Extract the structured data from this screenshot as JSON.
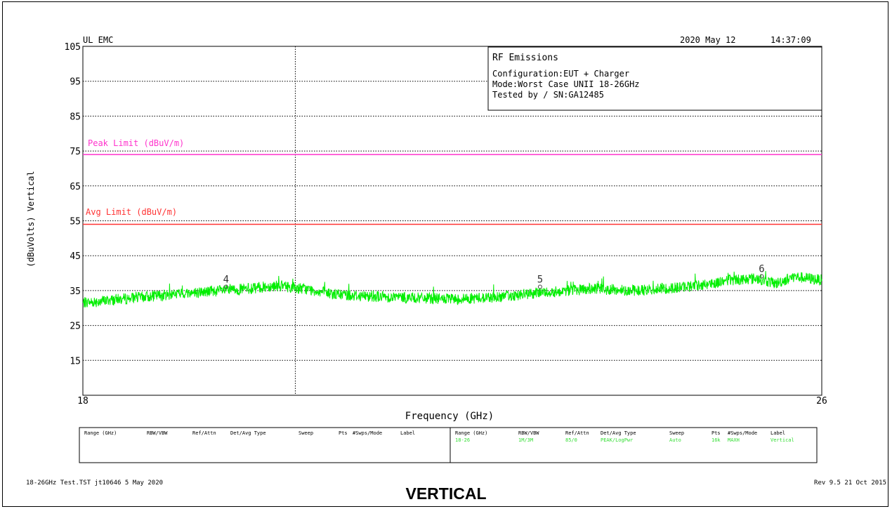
{
  "header": {
    "left": "UL EMC",
    "date": "2020 May 12",
    "time": "14:37:09"
  },
  "info_box": {
    "title": "RF Emissions",
    "lines": [
      "Configuration:EUT + Charger",
      "Mode:Worst Case UNII 18-26GHz",
      "Tested by / SN:GA12485"
    ]
  },
  "footer": {
    "left": "18-26GHz Test.TST jt10646  5 May 2020",
    "right": "Rev 9.5 21 Oct 2015",
    "caption": "VERTICAL"
  },
  "legend_table": {
    "headers": [
      "Range (GHz)",
      "RBW/VBW",
      "Ref/Attn",
      "Det/Avg Type",
      "Sweep",
      "Pts",
      "#Swps/Mode",
      "Label"
    ],
    "right_row": [
      "18-26",
      "1M/3M",
      "85/0",
      "PEAK/LogPwr",
      "Auto",
      "16k",
      "MAXH",
      "Vertical"
    ],
    "right_row_color": "#33dd33"
  },
  "colors": {
    "trace": "#00ee00",
    "peak_limit": "#ff33cc",
    "avg_limit": "#ff3333",
    "grid": "#000000"
  },
  "chart_data": {
    "type": "line",
    "xlabel": "Frequency (GHz)",
    "ylabel": "(dBuVolts) Vertical",
    "xlim": [
      18,
      26
    ],
    "ylim": [
      5,
      105
    ],
    "yticks": [
      105,
      95,
      85,
      75,
      65,
      55,
      45,
      35,
      25,
      15
    ],
    "xtick_labels": [
      "18",
      "26"
    ],
    "limit_lines": [
      {
        "name": "Peak Limit (dBuV/m)",
        "value": 74,
        "color": "#ff33cc"
      },
      {
        "name": "Avg Limit (dBuV/m)",
        "value": 54,
        "color": "#ff3333"
      }
    ],
    "series": [
      {
        "x": [
          18.0,
          18.5,
          19.0,
          19.5,
          19.8,
          20.1,
          20.4,
          20.7,
          21.0,
          21.5,
          22.0,
          22.5,
          23.0,
          23.5,
          24.0,
          24.5,
          24.8,
          25.0,
          25.3,
          25.5,
          25.7,
          26.0
        ],
        "values": [
          31.5,
          32.8,
          34.0,
          35.0,
          35.5,
          36.5,
          35.5,
          34.0,
          33.5,
          33.0,
          32.5,
          33.2,
          34.5,
          35.5,
          35.0,
          36.0,
          37.0,
          38.0,
          38.5,
          37.0,
          39.0,
          38.0
        ]
      }
    ],
    "markers": [
      {
        "label": "4",
        "x": 19.55,
        "y": 36.5
      },
      {
        "label": "5",
        "x": 22.95,
        "y": 36.5
      },
      {
        "label": "6",
        "x": 25.35,
        "y": 39.5
      }
    ],
    "grid": true
  }
}
